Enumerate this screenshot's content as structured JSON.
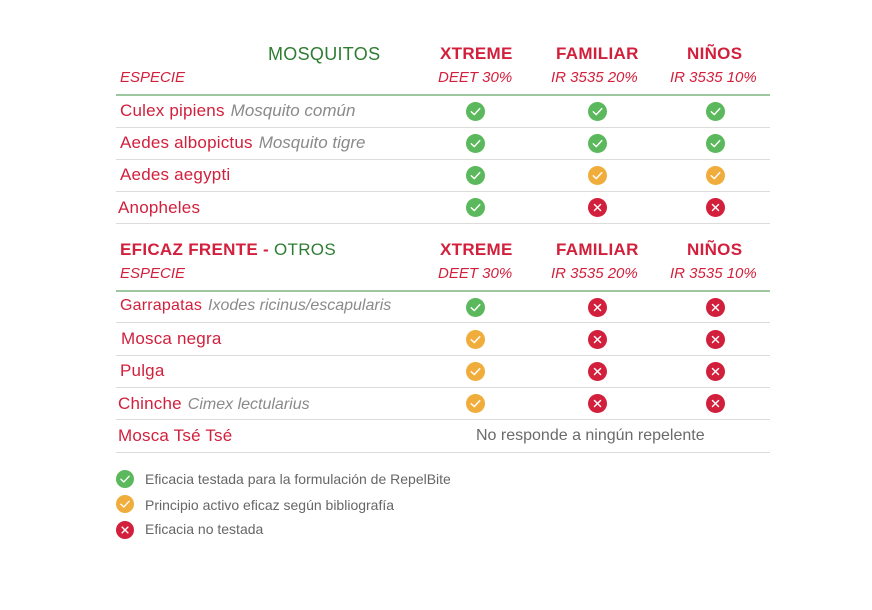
{
  "section_mosquitos": {
    "title": "MOSQUITOS",
    "especie_label": "ESPECIE",
    "columns": [
      {
        "name": "XTREME",
        "sub": "DEET 30%"
      },
      {
        "name": "FAMILIAR",
        "sub": "IR 3535 20%"
      },
      {
        "name": "NIÑOS",
        "sub": "IR 3535 10%"
      }
    ],
    "rows": [
      {
        "name": "Culex pipiens",
        "common": "Mosquito común",
        "status": [
          "tested",
          "tested",
          "tested"
        ]
      },
      {
        "name": "Aedes albopictus",
        "common": "Mosquito tigre",
        "status": [
          "tested",
          "tested",
          "tested"
        ]
      },
      {
        "name": "Aedes aegypti",
        "common": "",
        "status": [
          "tested",
          "bibliography",
          "bibliography"
        ]
      },
      {
        "name": "Anopheles",
        "common": "",
        "status": [
          "tested",
          "not_tested",
          "not_tested"
        ]
      }
    ]
  },
  "section_otros": {
    "title_part1": "EFICAZ FRENTE -",
    "title_part2": " OTROS",
    "especie_label": "ESPECIE",
    "columns": [
      {
        "name": "XTREME",
        "sub": "DEET 30%"
      },
      {
        "name": "FAMILIAR",
        "sub": "IR 3535 20%"
      },
      {
        "name": "NIÑOS",
        "sub": "IR 3535 10%"
      }
    ],
    "rows": [
      {
        "name": "Garrapatas",
        "common": "Ixodes ricinus/escapularis",
        "status": [
          "tested",
          "not_tested",
          "not_tested"
        ]
      },
      {
        "name": "Mosca negra",
        "common": "",
        "status": [
          "bibliography",
          "not_tested",
          "not_tested"
        ]
      },
      {
        "name": "Pulga",
        "common": "",
        "status": [
          "bibliography",
          "not_tested",
          "not_tested"
        ]
      },
      {
        "name": "Chinche",
        "common": "Cimex lectularius",
        "status": [
          "bibliography",
          "not_tested",
          "not_tested"
        ]
      }
    ],
    "tsetse": {
      "name": "Mosca Tsé Tsé",
      "note": "No responde a ningún repelente"
    }
  },
  "legend": [
    {
      "status": "tested",
      "label": "Eficacia testada para la formulación de RepelBite"
    },
    {
      "status": "bibliography",
      "label": "Principio activo eficaz según bibliografía"
    },
    {
      "status": "not_tested",
      "label": "Eficacia no testada"
    }
  ],
  "colors": {
    "tested": "#5cb85c",
    "bibliography": "#f0ad3c",
    "not_tested": "#d21f3c",
    "red_text": "#d21f3c",
    "green_text": "#2e7d32"
  },
  "icons": {
    "tested": "check-icon",
    "bibliography": "check-icon",
    "not_tested": "cross-icon"
  }
}
